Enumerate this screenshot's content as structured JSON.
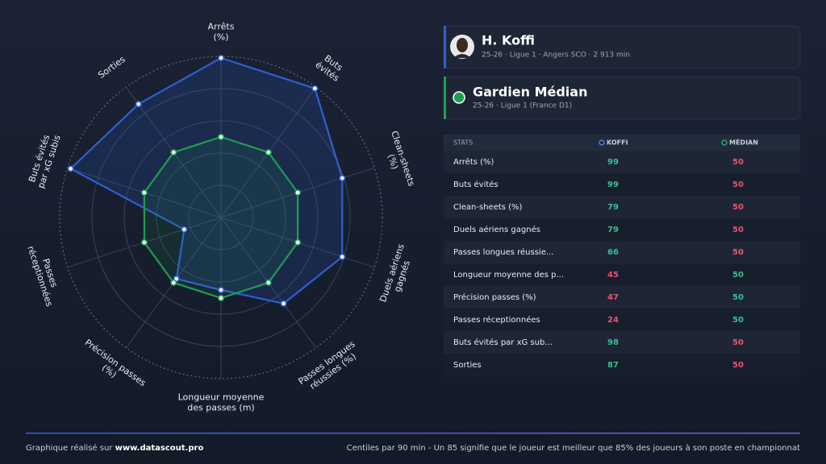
{
  "chart_data": {
    "type": "radar",
    "labels": [
      [
        "Arrêts",
        "(%)"
      ],
      [
        "Buts",
        "évités"
      ],
      [
        "Clean-sheets",
        "(%)"
      ],
      [
        "Duels aériens",
        "gagnés"
      ],
      [
        "Passes longues",
        "réussies (%)"
      ],
      [
        "Longueur moyenne",
        "des passes (m)"
      ],
      [
        "Précision passes",
        "(%)"
      ],
      [
        "Passes",
        "réceptionnées"
      ],
      [
        "Buts évités",
        "par xG subis"
      ],
      [
        "Sorties"
      ]
    ],
    "series": [
      {
        "name": "H. Koffi",
        "color": "#2f5fd0",
        "values": [
          99,
          99,
          79,
          79,
          66,
          45,
          47,
          24,
          98,
          87
        ]
      },
      {
        "name": "Gardien Médian",
        "color": "#1f9d55",
        "values": [
          50,
          50,
          50,
          50,
          50,
          50,
          50,
          50,
          50,
          50
        ]
      }
    ],
    "ylim": [
      0,
      100
    ],
    "yticks": [
      20,
      40,
      60,
      80,
      100
    ],
    "grid": true
  },
  "player": {
    "subtitle": "25-26 · Ligue 1 · Angers SCO · 2 913 min"
  },
  "reference": {
    "subtitle": "25-26 · Ligue 1 (France D1)"
  },
  "table": {
    "columns": [
      "STATS",
      "KOFFI",
      "MÉDIAN"
    ],
    "labels": [
      "Arrêts (%)",
      "Buts évités",
      "Clean-sheets (%)",
      "Duels aériens gagnés",
      "Passes longues réussie...",
      "Longueur moyenne des p...",
      "Précision passes (%)",
      "Passes réceptionnées",
      "Buts évités par xG sub...",
      "Sorties"
    ]
  },
  "footer": {
    "credit": "Graphique réalisé sur",
    "site": "www.datascout.pro",
    "note": "Centiles par 90 min - Un 85 signifie que le joueur est meilleur que 85% des joueurs à son poste en championnat"
  }
}
